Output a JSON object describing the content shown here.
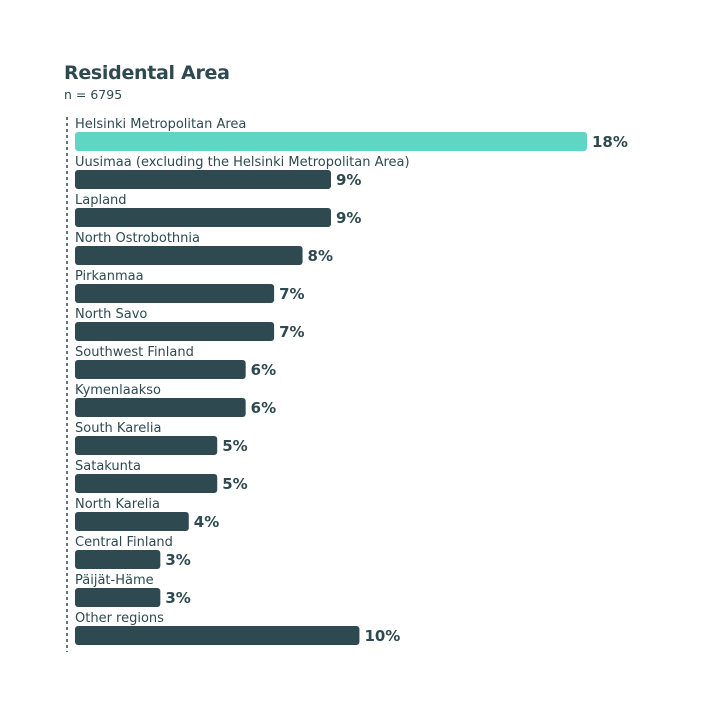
{
  "chart_data": {
    "type": "bar",
    "orientation": "horizontal",
    "title": "Residental Area",
    "subtitle": "n = 6795",
    "categories": [
      "Helsinki Metropolitan Area",
      "Uusimaa (excluding the Helsinki Metropolitan Area)",
      "Lapland",
      "North Ostrobothnia",
      "Pirkanmaa",
      "North Savo",
      "Southwest Finland",
      "Kymenlaakso",
      "South Karelia",
      "Satakunta",
      "North Karelia",
      "Central Finland",
      "Päijät-Häme",
      "Other regions"
    ],
    "values": [
      18,
      9,
      9,
      8,
      7,
      7,
      6,
      6,
      5,
      5,
      4,
      3,
      3,
      10
    ],
    "value_labels": [
      "18%",
      "9%",
      "9%",
      "8%",
      "7%",
      "7%",
      "6%",
      "6%",
      "5%",
      "5%",
      "4%",
      "3%",
      "3%",
      "10%"
    ],
    "highlight_index": 0,
    "xlim": [
      0,
      18
    ],
    "unit": "%",
    "grid": false,
    "colors": {
      "highlight": "#5fd6c4",
      "bar": "#2e4a50",
      "text": "#2e4a50",
      "axis": "#2e4a50"
    }
  }
}
